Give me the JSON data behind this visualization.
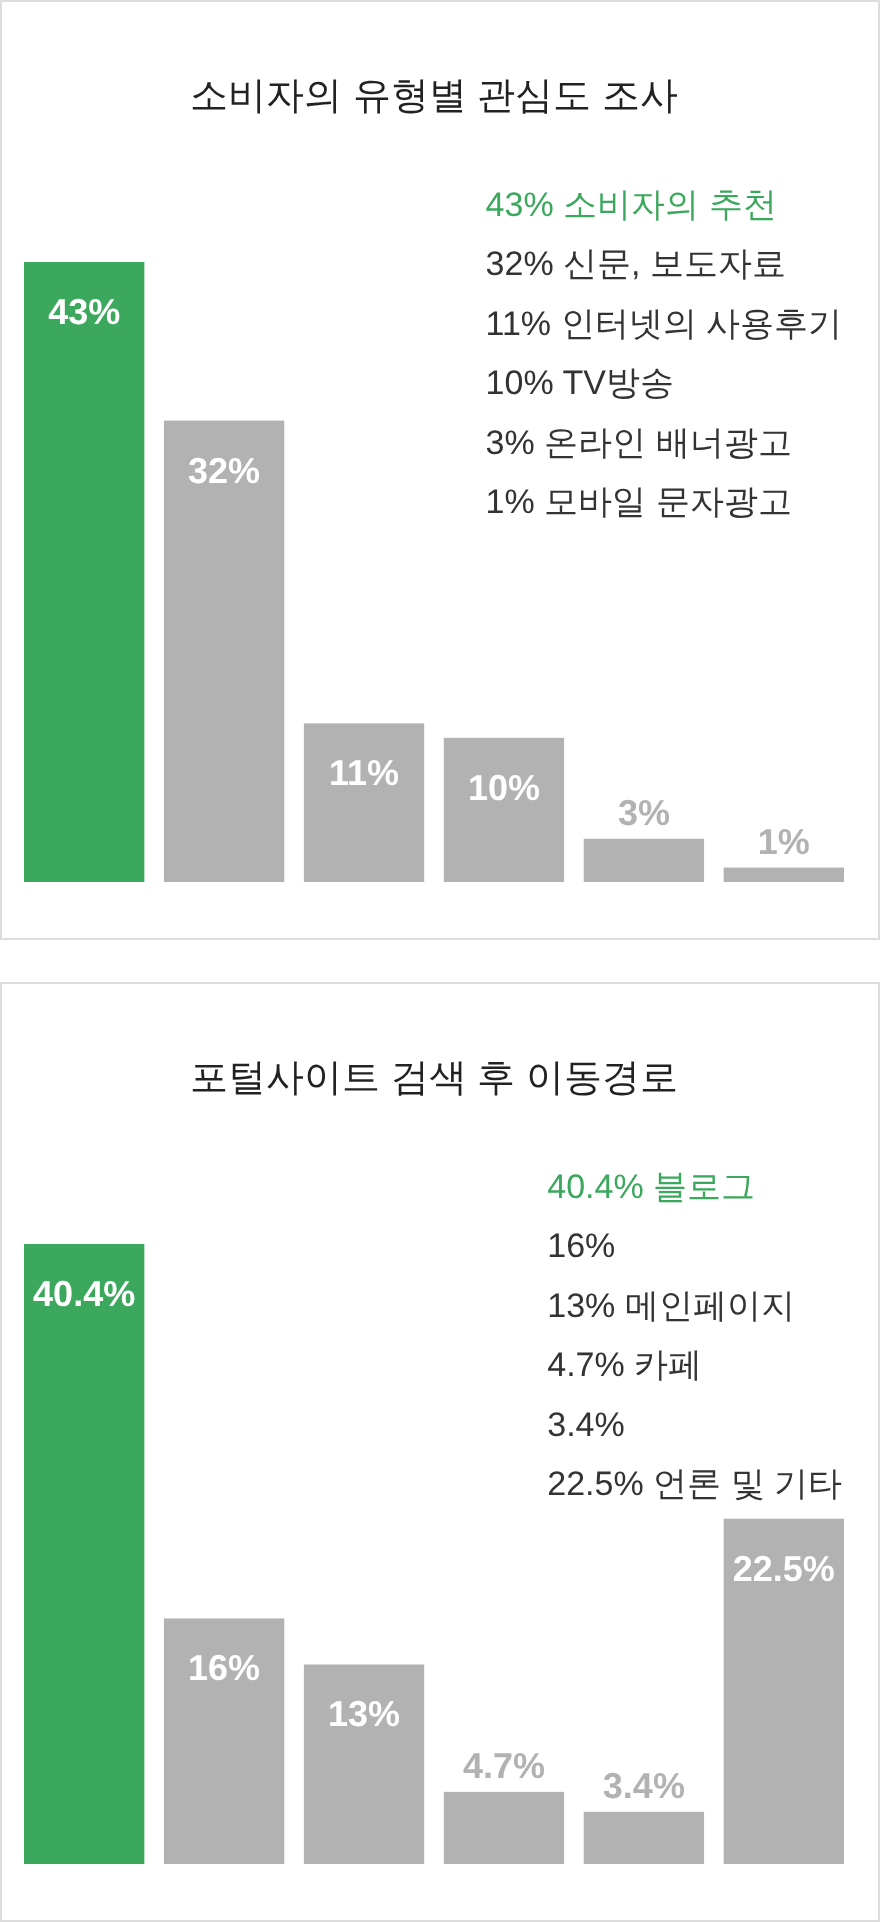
{
  "chart_data": [
    {
      "type": "bar",
      "title": "소비자의 유형별 관심도 조사",
      "categories": [
        null,
        null,
        null,
        null,
        null,
        null
      ],
      "values": [
        43,
        32,
        11,
        10,
        3,
        1
      ],
      "colors": [
        "#3ca85d",
        "#b2b2b2",
        "#b2b2b2",
        "#b2b2b2",
        "#b2b2b2",
        "#b2b2b2"
      ],
      "value_labels": [
        "43%",
        "32%",
        "11%",
        "10%",
        "3%",
        "1%"
      ],
      "annotations": [
        "43% 소비자의 추천",
        "32% 신문, 보도자료",
        "11% 인터넷의 사용후기",
        "10% TV방송",
        "3% 온라인 배너광고",
        "1% 모바일 문자광고"
      ]
    },
    {
      "type": "bar",
      "title": "포털사이트 검색 후 이동경로",
      "categories": [
        null,
        null,
        null,
        null,
        null,
        null
      ],
      "values": [
        40.4,
        16,
        13,
        4.7,
        3.4,
        22.5
      ],
      "colors": [
        "#3ca85d",
        "#b2b2b2",
        "#b2b2b2",
        "#b2b2b2",
        "#b2b2b2",
        "#b2b2b2"
      ],
      "value_labels": [
        "40.4%",
        "16%",
        "13%",
        "4.7%",
        "3.4%",
        "22.5%"
      ],
      "annotations": [
        "40.4% 블로그",
        "16%",
        "13% 메인페이지",
        "4.7% 카페",
        "3.4%",
        "22.5% 언론 및 기타"
      ]
    }
  ]
}
